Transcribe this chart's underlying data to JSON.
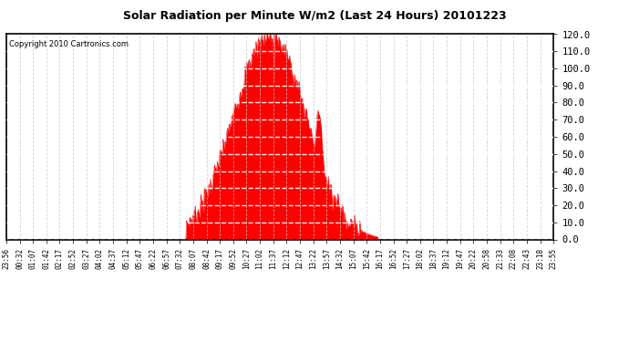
{
  "title": "Solar Radiation per Minute W/m2 (Last 24 Hours) 20101223",
  "copyright": "Copyright 2010 Cartronics.com",
  "fill_color": "#ff0000",
  "line_color": "#ff0000",
  "background_color": "#ffffff",
  "plot_bg_color": "#ffffff",
  "grid_color_h": "#ffffff",
  "grid_color_v": "#c8c8c8",
  "dashed_line_color": "#ff0000",
  "ylim": [
    0.0,
    120.0
  ],
  "yticks": [
    0.0,
    10.0,
    20.0,
    30.0,
    40.0,
    50.0,
    60.0,
    70.0,
    80.0,
    90.0,
    100.0,
    110.0,
    120.0
  ],
  "xtick_labels": [
    "23:56",
    "00:32",
    "01:07",
    "01:42",
    "02:17",
    "02:52",
    "03:27",
    "04:02",
    "04:37",
    "05:12",
    "05:47",
    "06:22",
    "06:57",
    "07:32",
    "08:07",
    "08:42",
    "09:17",
    "09:52",
    "10:27",
    "11:02",
    "11:37",
    "12:12",
    "12:47",
    "13:22",
    "13:57",
    "14:32",
    "15:07",
    "15:42",
    "16:17",
    "16:52",
    "17:27",
    "18:02",
    "18:37",
    "19:12",
    "19:47",
    "20:22",
    "20:58",
    "21:33",
    "22:08",
    "22:43",
    "23:18",
    "23:55"
  ],
  "num_points": 1440,
  "sunrise_hour": 7.9,
  "sunset_hour": 16.3,
  "peak_hour": 11.55,
  "peak_value": 120.0
}
